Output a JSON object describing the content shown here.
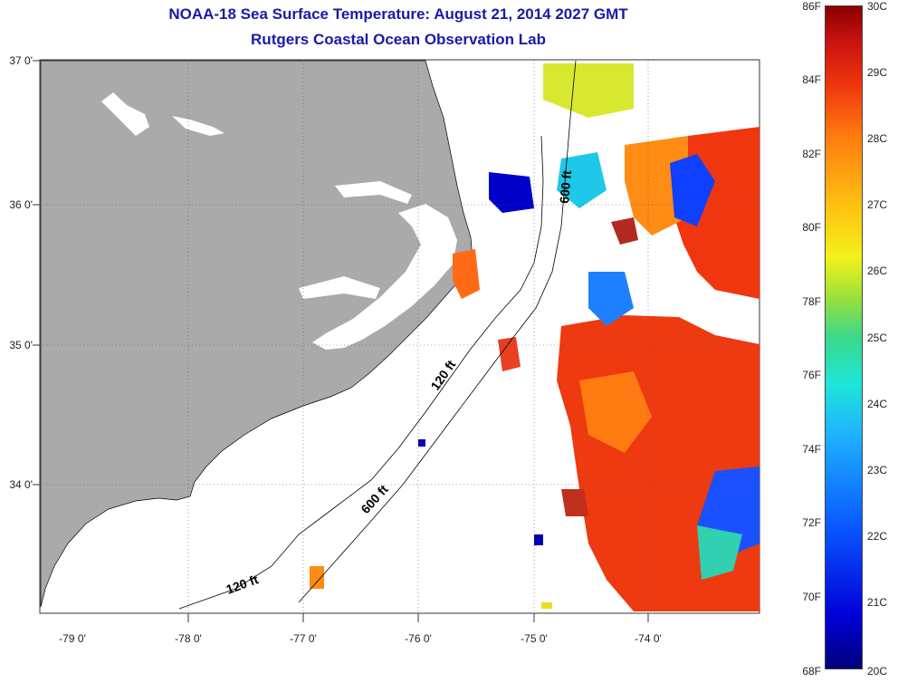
{
  "title": {
    "line1": "NOAA-18 Sea Surface Temperature:  August 21, 2014 2027 GMT",
    "line2": "Rutgers Coastal Ocean Observation Lab"
  },
  "map": {
    "lat_labels": [
      "37 0'",
      "36 0'",
      "35 0'",
      "34 0'"
    ],
    "lon_labels": [
      "-79 0'",
      "-78 0'",
      "-77 0'",
      "-76 0'",
      "-75 0'",
      "-74 0'"
    ],
    "contour_labels": [
      "120 ft",
      "600 ft",
      "120 ft",
      "600 ft"
    ],
    "colors": {
      "land": "#aaaaaa",
      "no_data": "#ffffff",
      "warm": "#f0360e",
      "cold": "#0000c8"
    }
  },
  "colorbar": {
    "fahrenheit": [
      "86F",
      "84F",
      "82F",
      "80F",
      "78F",
      "76F",
      "74F",
      "72F",
      "70F",
      "68F"
    ],
    "celsius": [
      "30C",
      "29C",
      "28C",
      "27C",
      "26C",
      "25C",
      "24C",
      "23C",
      "22C",
      "21C",
      "20C"
    ],
    "scale": "jet"
  }
}
